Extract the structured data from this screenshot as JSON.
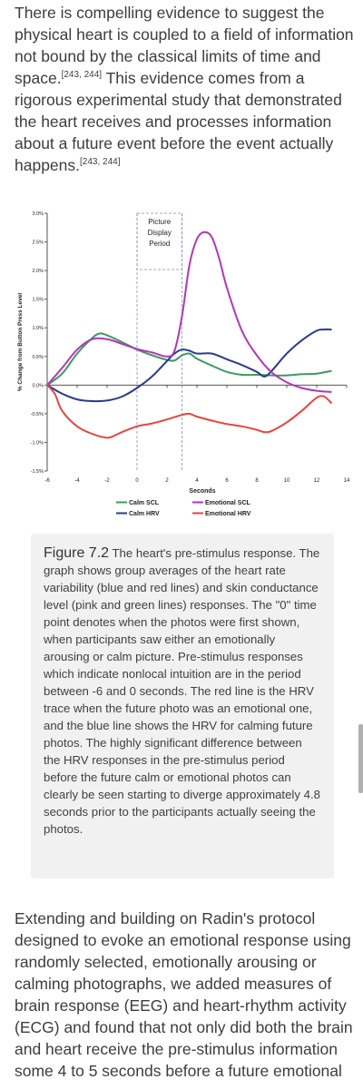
{
  "intro": {
    "text_1": "There is compelling evidence to suggest the physical heart is coupled to a field of information not bound by the classical limits of time and space.",
    "ref_1": "[243, 244]",
    "text_2": " This evidence comes from a rigorous experimental study that demonstrated the heart receives and processes information about a future event before the event actually happens.",
    "ref_2": "[243, 244]"
  },
  "chart_data": {
    "type": "line",
    "xlabel": "Seconds",
    "ylabel": "% Change from Button Press Level",
    "xlim": [
      -6,
      14
    ],
    "ylim": [
      -1.5,
      3.0
    ],
    "x_ticks": [
      "-6",
      "-4",
      "-2",
      "0",
      "2",
      "4",
      "6",
      "8",
      "10",
      "12",
      "14"
    ],
    "y_ticks": [
      "3.0%",
      "2.5%",
      "2.0%",
      "1.5%",
      "1.0%",
      "0.5%",
      "0.0%",
      "-0.5%",
      "-1.0%",
      "-1.5%"
    ],
    "annotation": "Picture Display Period",
    "display_period": [
      0,
      3
    ],
    "legend_placement": "bottom",
    "series": [
      {
        "name": "Calm SCL",
        "color": "#3e9a5e",
        "x": [
          -6,
          -5,
          -4,
          -3,
          -2.5,
          -2,
          -1,
          0,
          1,
          2,
          2.5,
          3,
          3.5,
          4,
          5,
          6,
          7,
          8,
          9,
          10,
          11,
          12,
          13
        ],
        "y": [
          0.0,
          0.2,
          0.55,
          0.82,
          0.9,
          0.87,
          0.75,
          0.62,
          0.52,
          0.44,
          0.43,
          0.52,
          0.55,
          0.46,
          0.34,
          0.23,
          0.18,
          0.18,
          0.17,
          0.17,
          0.19,
          0.2,
          0.25
        ]
      },
      {
        "name": "Calm HRV",
        "color": "#2b3a8c",
        "x": [
          -6,
          -5,
          -4,
          -3,
          -2,
          -1,
          0,
          1,
          2,
          2.5,
          3,
          3.5,
          4,
          5,
          6,
          7,
          8,
          8.5,
          9,
          10,
          11,
          12,
          12.5,
          13
        ],
        "y": [
          0.0,
          -0.15,
          -0.25,
          -0.28,
          -0.27,
          -0.2,
          -0.05,
          0.15,
          0.42,
          0.55,
          0.62,
          0.6,
          0.55,
          0.55,
          0.45,
          0.35,
          0.23,
          0.15,
          0.25,
          0.55,
          0.78,
          0.95,
          0.97,
          0.97
        ]
      },
      {
        "name": "Emotional SCL",
        "color": "#b236b8",
        "x": [
          -6,
          -5,
          -4,
          -3,
          -2,
          -1,
          0,
          1,
          2,
          2.5,
          3,
          3.5,
          4,
          4.5,
          5,
          5.5,
          6,
          7,
          8,
          9,
          10,
          11,
          12,
          13
        ],
        "y": [
          0.0,
          0.3,
          0.62,
          0.8,
          0.8,
          0.72,
          0.63,
          0.57,
          0.5,
          0.6,
          1.2,
          2.1,
          2.55,
          2.67,
          2.58,
          2.2,
          1.7,
          0.95,
          0.52,
          0.22,
          0.05,
          -0.05,
          -0.1,
          -0.12
        ]
      },
      {
        "name": "Emotional HRV",
        "color": "#e8433f",
        "x": [
          -6,
          -5.5,
          -5,
          -4,
          -3,
          -2,
          -1.5,
          -1,
          0,
          1,
          2,
          3,
          3.5,
          4,
          5,
          6,
          7,
          8,
          8.5,
          9,
          10,
          11,
          12,
          12.5,
          13
        ],
        "y": [
          0.0,
          -0.15,
          -0.45,
          -0.72,
          -0.85,
          -0.92,
          -0.88,
          -0.82,
          -0.72,
          -0.67,
          -0.6,
          -0.52,
          -0.5,
          -0.55,
          -0.62,
          -0.68,
          -0.72,
          -0.78,
          -0.82,
          -0.8,
          -0.65,
          -0.45,
          -0.22,
          -0.2,
          -0.32
        ]
      }
    ]
  },
  "caption": {
    "label": "Figure 7.2",
    "text": " The heart's pre-stimulus response. The graph shows group averages of the heart rate variability (blue and red lines) and skin conductance level (pink and green lines) responses. The \"0\" time point denotes when the photos were first shown, when participants saw either an emotionally arousing or calm picture. Pre-stimulus responses which indicate nonlocal intuition are in the period between -6 and 0 seconds. The red line is the HRV trace when the future photo was an emotional one, and the blue line shows the HRV for calming future photos. The highly significant difference between the HRV responses in the pre-stimulus period before the future calm or emotional photos can clearly be seen starting to diverge approximately 4.8 seconds prior to the participants actually seeing the photos."
  },
  "outro": {
    "text": "Extending and building on Radin's protocol designed to evoke an emotional response using randomly selected, emotionally arousing or calming photographs, we added measures of brain response (EEG) and heart-rhythm activity (ECG) and found that not only did both the brain and heart receive the pre-stimulus information some 4 to 5 seconds before a future emotional"
  }
}
